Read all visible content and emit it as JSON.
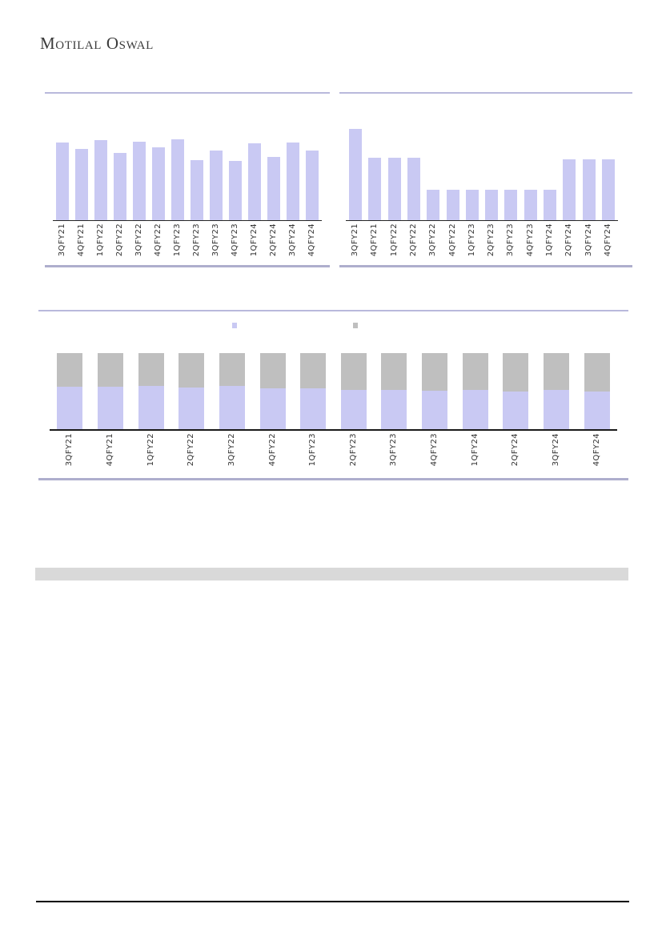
{
  "brand": {
    "logo_text": "Motilal Oswal"
  },
  "colors": {
    "bar_lavender": "#c9c9f3",
    "bar_gray": "#bfbfbf",
    "rule_thin": "#b9b9dc",
    "rule_thick": "#aeaecd",
    "band_gray": "#d9d9d9",
    "footer_rule": "#000000",
    "axis": "#262626",
    "label_text": "#333333"
  },
  "legend": {
    "items": [
      {
        "label": "",
        "swatch_color": "#c9c9f3"
      },
      {
        "label": "",
        "swatch_color": "#bfbfbf"
      }
    ]
  },
  "chart_data": [
    {
      "type": "bar",
      "title": "",
      "categories": [
        "3QFY21",
        "4QFY21",
        "1QFY22",
        "2QFY22",
        "3QFY22",
        "4QFY22",
        "1QFY23",
        "2QFY23",
        "3QFY23",
        "4QFY23",
        "1QFY24",
        "2QFY24",
        "3QFY24",
        "4QFY24"
      ],
      "values": [
        96,
        88,
        99,
        83,
        97,
        90,
        100,
        74,
        86,
        73,
        95,
        78,
        96,
        86
      ],
      "ylim": [
        0,
        100
      ],
      "bar_color": "#c9c9f3",
      "xlabel": "",
      "ylabel": "",
      "grid": false,
      "legend_position": "none",
      "stacked": false
    },
    {
      "type": "bar",
      "title": "",
      "categories": [
        "3QFY21",
        "4QFY21",
        "1QFY22",
        "2QFY22",
        "3QFY22",
        "4QFY22",
        "1QFY23",
        "2QFY23",
        "3QFY23",
        "4QFY23",
        "1QFY24",
        "2QFY24",
        "3QFY24",
        "4QFY24"
      ],
      "values": [
        100,
        68,
        68,
        68,
        33,
        33,
        33,
        33,
        33,
        33,
        33,
        67,
        67,
        67
      ],
      "ylim": [
        0,
        100
      ],
      "bar_color": "#c9c9f3",
      "xlabel": "",
      "ylabel": "",
      "grid": false,
      "legend_position": "none",
      "stacked": false
    },
    {
      "type": "bar",
      "title": "",
      "categories": [
        "3QFY21",
        "4QFY21",
        "1QFY22",
        "2QFY22",
        "3QFY22",
        "4QFY22",
        "1QFY23",
        "2QFY23",
        "3QFY23",
        "4QFY23",
        "1QFY24",
        "2QFY24",
        "3QFY24",
        "4QFY24"
      ],
      "stacked": true,
      "normalized_to_100": true,
      "series": [
        {
          "name": "",
          "color": "#c9c9f3",
          "values": [
            55.4,
            55.4,
            56.5,
            55.1,
            56.5,
            53.7,
            53.3,
            51.6,
            51.2,
            50.5,
            51.2,
            49.5,
            51.9,
            49.1
          ]
        },
        {
          "name": "",
          "color": "#bfbfbf",
          "values": [
            44.6,
            44.6,
            43.5,
            44.9,
            43.5,
            46.3,
            46.7,
            48.4,
            48.8,
            49.5,
            48.8,
            50.5,
            48.1,
            50.9
          ]
        }
      ],
      "ylim": [
        0,
        100
      ],
      "xlabel": "",
      "ylabel": "",
      "grid": false,
      "legend_position": "top"
    }
  ]
}
